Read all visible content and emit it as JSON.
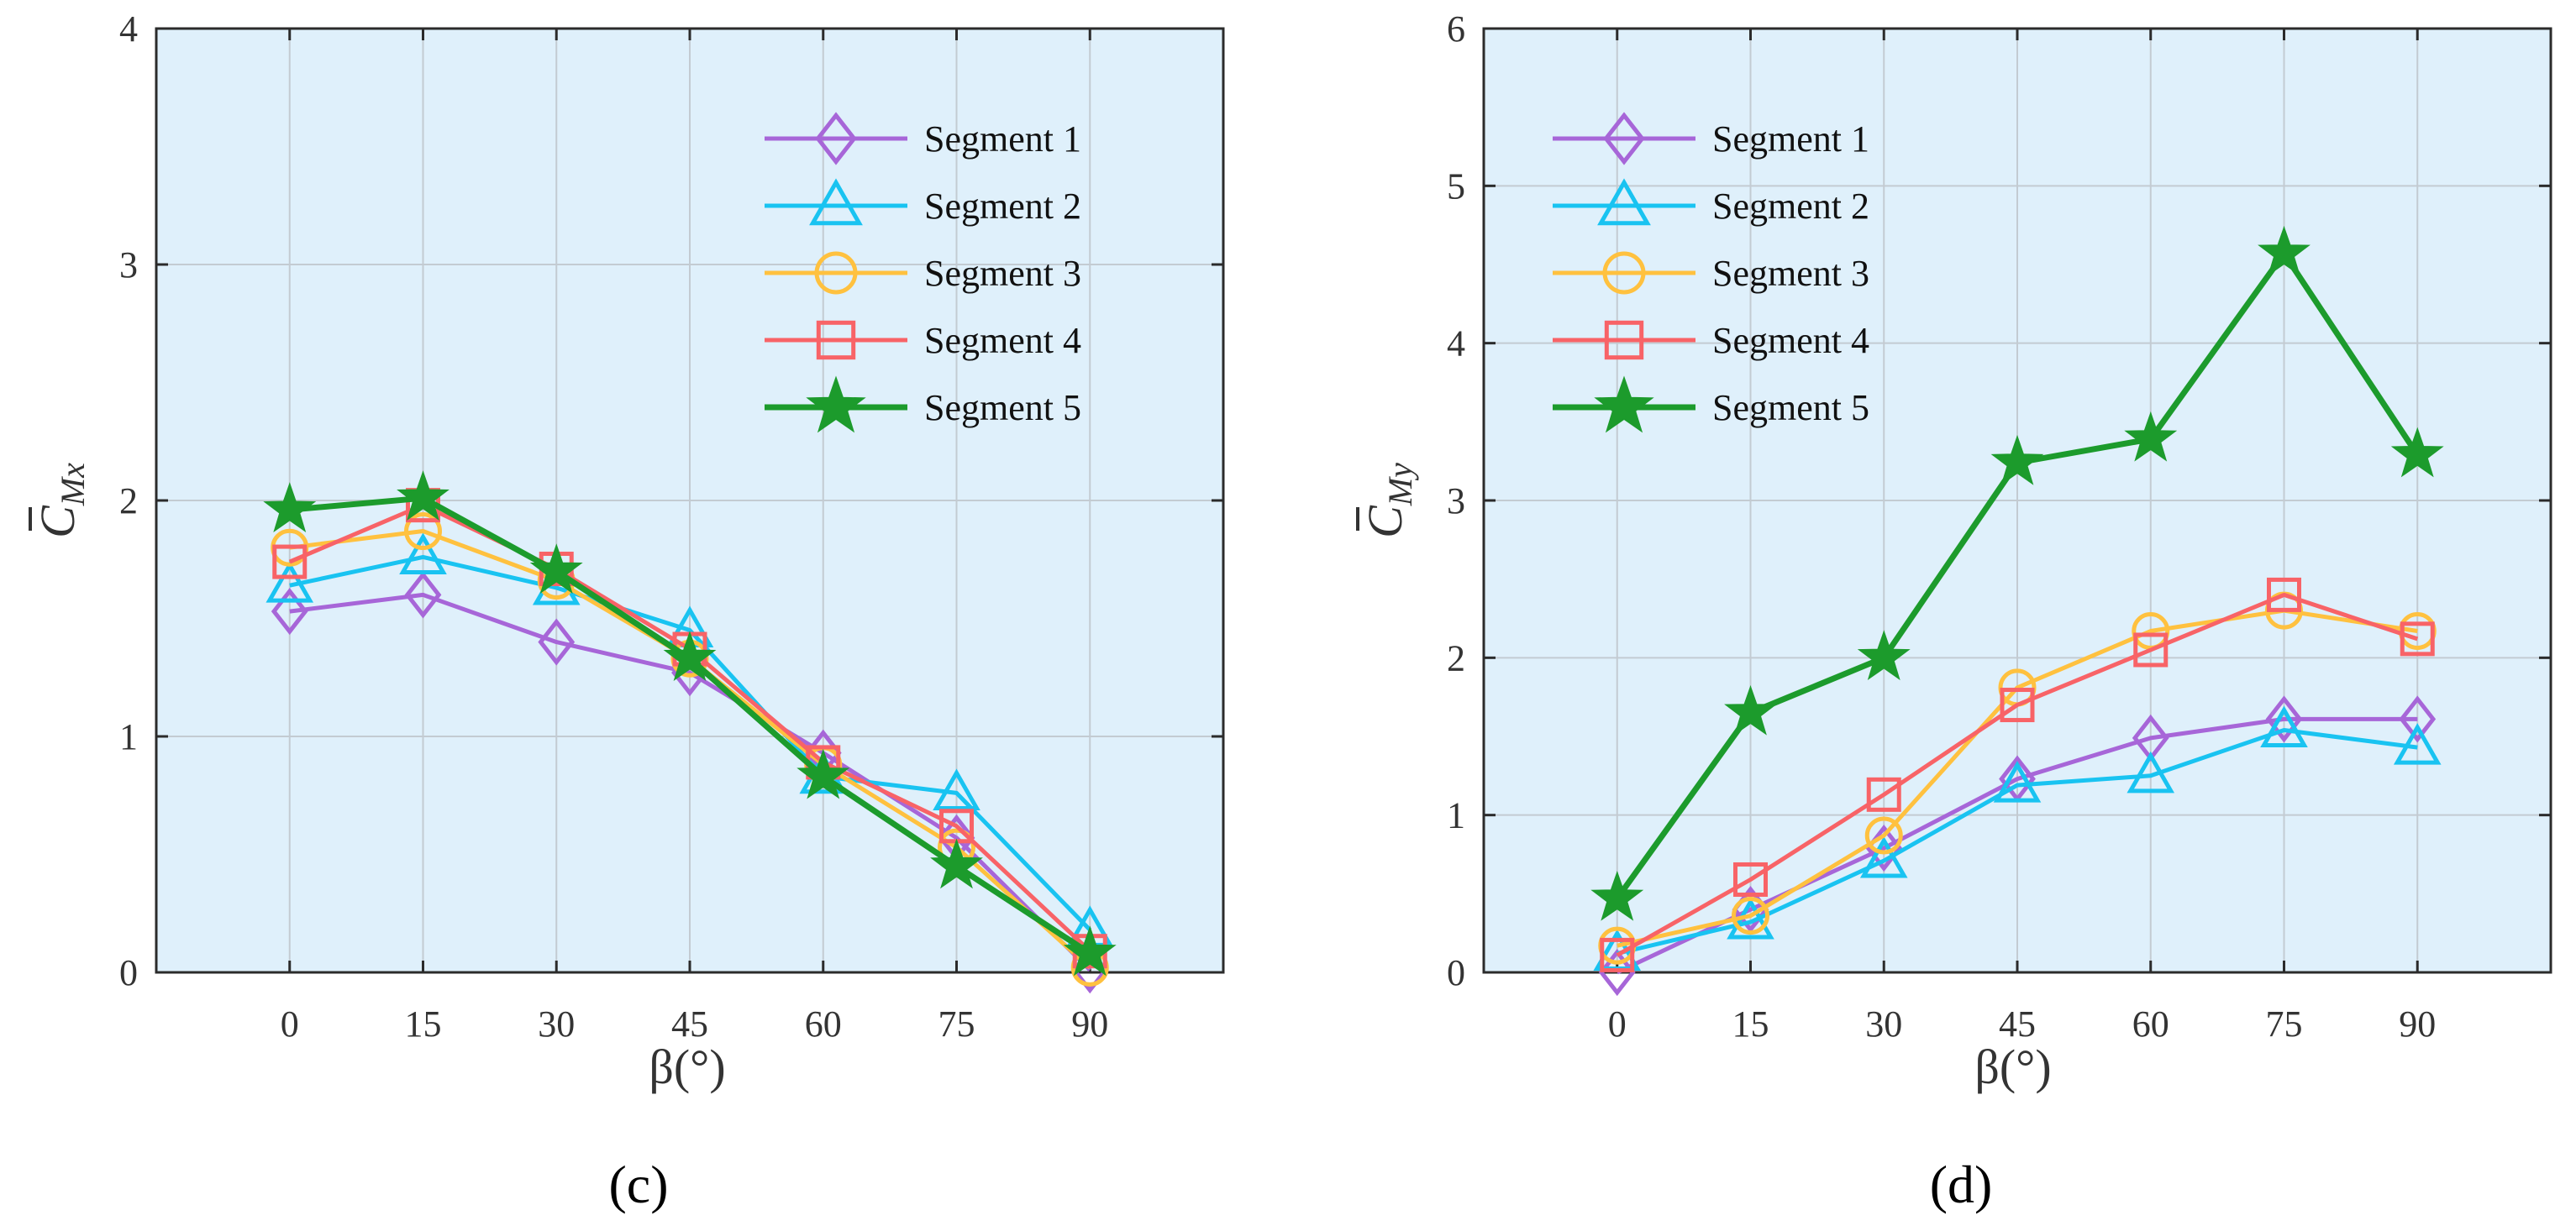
{
  "chart_data": [
    {
      "type": "line",
      "panel_label": "(c)",
      "xlabel": "β(°)",
      "ylabel": {
        "base": "C",
        "subscript": "Mx",
        "overbar": true
      },
      "x": [
        0,
        15,
        30,
        45,
        60,
        75,
        90
      ],
      "xticks": [
        "0",
        "15",
        "30",
        "45",
        "60",
        "75",
        "90"
      ],
      "ylim": [
        0,
        4
      ],
      "yticks": [
        "0",
        "1",
        "2",
        "3",
        "4"
      ],
      "grid": true,
      "background": "#dff0fb",
      "legend_position": "top-right",
      "series": [
        {
          "name": "Segment 1",
          "color": "#a766d8",
          "marker": "diamond",
          "values": [
            1.53,
            1.6,
            1.4,
            1.27,
            0.93,
            0.57,
            0.01
          ]
        },
        {
          "name": "Segment 2",
          "color": "#19c3f1",
          "marker": "triangle",
          "values": [
            1.64,
            1.76,
            1.63,
            1.45,
            0.83,
            0.76,
            0.18
          ]
        },
        {
          "name": "Segment 3",
          "color": "#ffc13f",
          "marker": "circle",
          "values": [
            1.8,
            1.87,
            1.66,
            1.33,
            0.88,
            0.53,
            0.02
          ]
        },
        {
          "name": "Segment 4",
          "color": "#f86367",
          "marker": "square",
          "values": [
            1.74,
            1.98,
            1.71,
            1.37,
            0.89,
            0.62,
            0.09
          ]
        },
        {
          "name": "Segment 5",
          "color": "#1c9b2c",
          "marker": "star",
          "values": [
            1.96,
            2.01,
            1.7,
            1.33,
            0.83,
            0.45,
            0.08
          ]
        }
      ]
    },
    {
      "type": "line",
      "panel_label": "(d)",
      "xlabel": "β(°)",
      "ylabel": {
        "base": "C",
        "subscript": "My",
        "overbar": true
      },
      "x": [
        0,
        15,
        30,
        45,
        60,
        75,
        90
      ],
      "xticks": [
        "0",
        "15",
        "30",
        "45",
        "60",
        "75",
        "90"
      ],
      "ylim": [
        0,
        6
      ],
      "yticks": [
        "0",
        "1",
        "2",
        "3",
        "4",
        "5",
        "6"
      ],
      "grid": true,
      "background": "#dff0fb",
      "legend_position": "top-left",
      "series": [
        {
          "name": "Segment 1",
          "color": "#a766d8",
          "marker": "diamond",
          "values": [
            0.0,
            0.4,
            0.79,
            1.23,
            1.49,
            1.61,
            1.61
          ]
        },
        {
          "name": "Segment 2",
          "color": "#19c3f1",
          "marker": "triangle",
          "values": [
            0.12,
            0.32,
            0.71,
            1.19,
            1.25,
            1.54,
            1.43
          ]
        },
        {
          "name": "Segment 3",
          "color": "#ffc13f",
          "marker": "circle",
          "values": [
            0.17,
            0.36,
            0.87,
            1.81,
            2.17,
            2.3,
            2.17
          ]
        },
        {
          "name": "Segment 4",
          "color": "#f86367",
          "marker": "square",
          "values": [
            0.11,
            0.59,
            1.13,
            1.7,
            2.05,
            2.4,
            2.12
          ]
        },
        {
          "name": "Segment 5",
          "color": "#1c9b2c",
          "marker": "star",
          "values": [
            0.47,
            1.65,
            2.0,
            3.24,
            3.39,
            4.57,
            3.29
          ]
        }
      ]
    }
  ]
}
